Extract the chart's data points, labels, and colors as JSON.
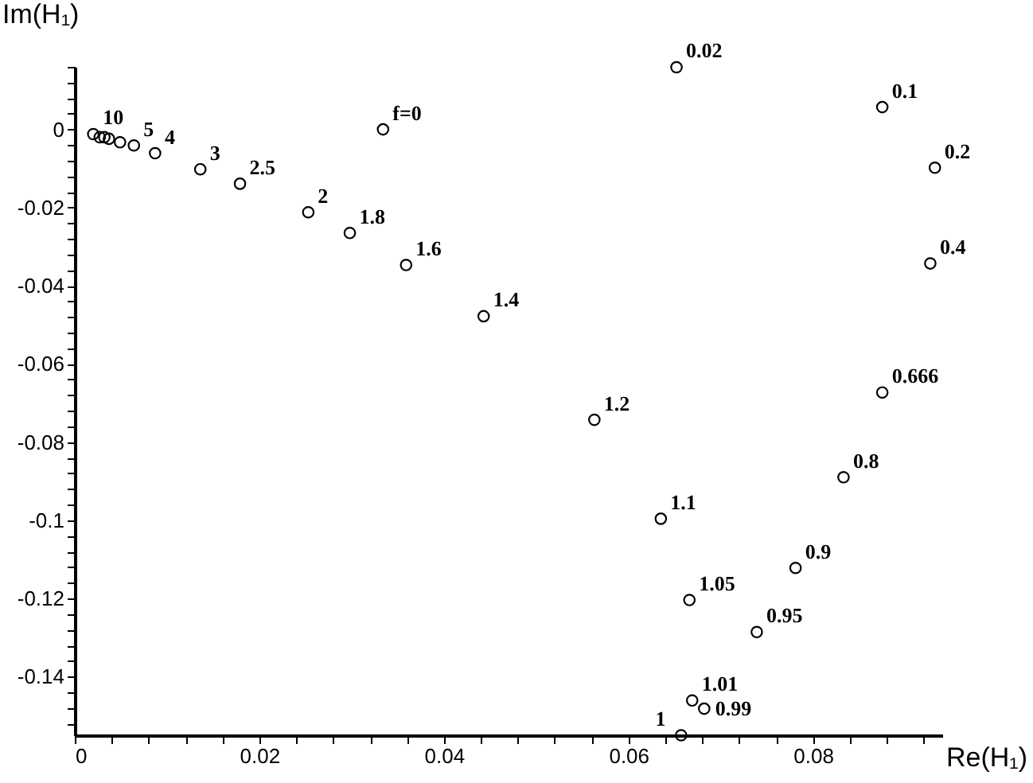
{
  "chart_data": {
    "type": "scatter",
    "xlabel": "Re(H₁)",
    "ylabel": "Im(H₁)",
    "x": [
      0.002,
      0.0027,
      0.0032,
      0.0037,
      0.0049,
      0.0064,
      0.0087,
      0.0136,
      0.0179,
      0.0253,
      0.0298,
      0.0359,
      0.0443,
      0.0334,
      0.0652,
      0.0875,
      0.0932,
      0.0927,
      0.0875,
      0.0563,
      0.0833,
      0.0635,
      0.0781,
      0.0666,
      0.0739,
      0.0669,
      0.0682,
      0.0657
    ],
    "values": [
      -0.0012,
      -0.002,
      -0.002,
      -0.0024,
      -0.0033,
      -0.0041,
      -0.0061,
      -0.0102,
      -0.0139,
      -0.0212,
      -0.0265,
      -0.0347,
      -0.0478,
      0.0,
      0.0159,
      0.0057,
      -0.0098,
      -0.0343,
      -0.0673,
      -0.0743,
      -0.089,
      -0.0996,
      -0.1122,
      -0.1204,
      -0.1286,
      -0.1461,
      -0.1482,
      -0.155
    ],
    "annotations": [
      {
        "text": "10",
        "x": 0.002,
        "y": -0.0012
      },
      {
        "text": "5",
        "x": 0.0064,
        "y": -0.0041
      },
      {
        "text": "4",
        "x": 0.0087,
        "y": -0.0061
      },
      {
        "text": "3",
        "x": 0.0136,
        "y": -0.0102
      },
      {
        "text": "2.5",
        "x": 0.0179,
        "y": -0.0139
      },
      {
        "text": "2",
        "x": 0.0253,
        "y": -0.0212
      },
      {
        "text": "1.8",
        "x": 0.0298,
        "y": -0.0265
      },
      {
        "text": "1.6",
        "x": 0.0359,
        "y": -0.0347
      },
      {
        "text": "1.4",
        "x": 0.0443,
        "y": -0.0478
      },
      {
        "text": "f=0",
        "x": 0.0334,
        "y": 0.0
      },
      {
        "text": "0.02",
        "x": 0.0652,
        "y": 0.0159
      },
      {
        "text": "0.1",
        "x": 0.0875,
        "y": 0.0057
      },
      {
        "text": "0.2",
        "x": 0.0932,
        "y": -0.0098
      },
      {
        "text": "0.4",
        "x": 0.0927,
        "y": -0.0343
      },
      {
        "text": "0.666",
        "x": 0.0875,
        "y": -0.0673
      },
      {
        "text": "1.2",
        "x": 0.0563,
        "y": -0.0743
      },
      {
        "text": "0.8",
        "x": 0.0833,
        "y": -0.089
      },
      {
        "text": "1.1",
        "x": 0.0635,
        "y": -0.0996
      },
      {
        "text": "0.9",
        "x": 0.0781,
        "y": -0.1122
      },
      {
        "text": "1.05",
        "x": 0.0666,
        "y": -0.1204
      },
      {
        "text": "0.95",
        "x": 0.0739,
        "y": -0.1286
      },
      {
        "text": "1.01",
        "x": 0.0669,
        "y": -0.1461
      },
      {
        "text": "0.99",
        "x": 0.0682,
        "y": -0.1482
      },
      {
        "text": "1",
        "x": 0.0657,
        "y": -0.155
      }
    ],
    "color": "#000000",
    "marker": "circle",
    "grid": false,
    "xlim": [
      0,
      0.094
    ],
    "ylim": [
      -0.155,
      0.016
    ],
    "xticks": [
      0,
      {
        "value": 0.004,
        "label": null
      },
      {
        "value": 0.008,
        "label": null
      },
      {
        "value": 0.012,
        "label": null
      },
      {
        "value": 0.016,
        "label": null
      },
      0.02,
      {
        "value": 0.024,
        "label": null
      },
      {
        "value": 0.028,
        "label": null
      },
      {
        "value": 0.032,
        "label": null
      },
      {
        "value": 0.036,
        "label": null
      },
      0.04,
      {
        "value": 0.044,
        "label": null
      },
      {
        "value": 0.048,
        "label": null
      },
      {
        "value": 0.052,
        "label": null
      },
      {
        "value": 0.056,
        "label": null
      },
      0.06,
      {
        "value": 0.064,
        "label": null
      },
      {
        "value": 0.068,
        "label": null
      },
      {
        "value": 0.072,
        "label": null
      },
      {
        "value": 0.076,
        "label": null
      },
      0.08,
      {
        "value": 0.084,
        "label": null
      },
      {
        "value": 0.088,
        "label": null
      },
      {
        "value": 0.092,
        "label": null
      }
    ],
    "yticks": [
      {
        "value": 0.016,
        "label": null
      },
      {
        "value": 0.012,
        "label": null
      },
      {
        "value": 0.008,
        "label": null
      },
      {
        "value": 0.004,
        "label": null
      },
      0,
      {
        "value": -0.004,
        "label": null
      },
      {
        "value": -0.008,
        "label": null
      },
      {
        "value": -0.012,
        "label": null
      },
      {
        "value": -0.016,
        "label": null
      },
      -0.02,
      {
        "value": -0.024,
        "label": null
      },
      {
        "value": -0.028,
        "label": null
      },
      {
        "value": -0.032,
        "label": null
      },
      {
        "value": -0.036,
        "label": null
      },
      -0.04,
      {
        "value": -0.044,
        "label": null
      },
      {
        "value": -0.048,
        "label": null
      },
      {
        "value": -0.052,
        "label": null
      },
      {
        "value": -0.056,
        "label": null
      },
      -0.06,
      {
        "value": -0.064,
        "label": null
      },
      {
        "value": -0.068,
        "label": null
      },
      {
        "value": -0.072,
        "label": null
      },
      {
        "value": -0.076,
        "label": null
      },
      -0.08,
      {
        "value": -0.084,
        "label": null
      },
      {
        "value": -0.088,
        "label": null
      },
      {
        "value": -0.092,
        "label": null
      },
      {
        "value": -0.096,
        "label": null
      },
      -0.1,
      {
        "value": -0.104,
        "label": null
      },
      {
        "value": -0.108,
        "label": null
      },
      {
        "value": -0.112,
        "label": null
      },
      {
        "value": -0.116,
        "label": null
      },
      -0.12,
      {
        "value": -0.124,
        "label": null
      },
      {
        "value": -0.128,
        "label": null
      },
      {
        "value": -0.132,
        "label": null
      },
      {
        "value": -0.136,
        "label": null
      },
      -0.14,
      {
        "value": -0.144,
        "label": null
      },
      {
        "value": -0.148,
        "label": null
      },
      {
        "value": -0.152,
        "label": null
      }
    ]
  }
}
